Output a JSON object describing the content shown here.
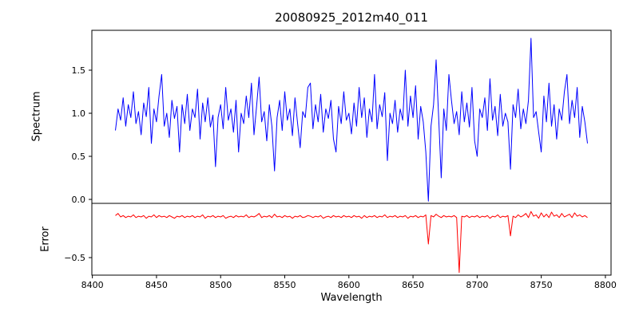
{
  "figure": {
    "background": "#ffffff",
    "frame_color": "#000000"
  },
  "chart_data": {
    "type": "line",
    "title": "20080925_2012m40_011",
    "xlabel": "Wavelength",
    "xlim": [
      8399.6,
      8804.4
    ],
    "x_ticks": [
      8400,
      8450,
      8500,
      8550,
      8600,
      8650,
      8700,
      8750,
      8800
    ],
    "grid": false,
    "legend": "none",
    "subplots": [
      {
        "name": "spectrum",
        "ylabel": "Spectrum",
        "ylim": [
          -0.046,
          1.963
        ],
        "yticks": [
          0.0,
          0.5,
          1.0,
          1.5
        ],
        "color": "#0000ff",
        "x_start": 8418,
        "x_step": 2,
        "y": [
          0.8,
          1.05,
          0.92,
          1.18,
          0.85,
          1.1,
          0.95,
          1.25,
          0.88,
          1.02,
          0.75,
          1.12,
          0.96,
          1.3,
          0.65,
          1.05,
          0.9,
          1.2,
          1.45,
          0.85,
          1.0,
          0.72,
          1.15,
          0.94,
          1.08,
          0.55,
          1.1,
          0.88,
          1.22,
          0.8,
          1.05,
          0.95,
          1.28,
          0.7,
          1.12,
          0.9,
          1.18,
          0.84,
          0.98,
          0.38,
          0.95,
          1.1,
          0.82,
          1.3,
          0.92,
          1.05,
          0.78,
          1.15,
          0.55,
          1.0,
          0.88,
          1.2,
          0.95,
          1.35,
          0.75,
          1.08,
          1.42,
          0.9,
          1.02,
          0.68,
          1.1,
          0.85,
          0.33,
          0.95,
          1.15,
          0.8,
          1.25,
          0.92,
          1.05,
          0.74,
          1.18,
          0.88,
          0.6,
          1.02,
          0.95,
          1.3,
          1.35,
          0.82,
          1.1,
          0.9,
          1.22,
          0.78,
          1.05,
          0.94,
          1.15,
          0.7,
          0.55,
          1.08,
          0.88,
          1.25,
          0.92,
          1.0,
          0.76,
          1.12,
          0.85,
          1.3,
          0.95,
          1.18,
          0.72,
          1.05,
          0.9,
          1.45,
          0.82,
          1.1,
          0.96,
          1.24,
          0.45,
          1.0,
          0.88,
          1.15,
          0.78,
          1.05,
          0.92,
          1.5,
          0.85,
          1.2,
          0.95,
          1.32,
          0.7,
          1.08,
          0.9,
          0.55,
          -0.02,
          0.85,
          1.1,
          1.62,
          0.95,
          0.25,
          1.05,
          0.8,
          1.45,
          1.15,
          0.88,
          1.02,
          0.75,
          1.25,
          0.9,
          1.12,
          0.84,
          1.3,
          0.68,
          0.5,
          1.05,
          0.95,
          1.18,
          0.8,
          1.4,
          0.92,
          1.08,
          0.74,
          1.22,
          0.85,
          1.0,
          0.9,
          0.35,
          1.1,
          0.95,
          1.28,
          0.82,
          1.05,
          0.88,
          1.15,
          1.87,
          0.95,
          1.02,
          0.78,
          0.55,
          1.2,
          0.9,
          1.35,
          0.85,
          1.1,
          0.7,
          1.05,
          0.92,
          1.25,
          1.45,
          0.88,
          1.15,
          0.95,
          1.3,
          0.72,
          1.08,
          0.9,
          0.65
        ]
      },
      {
        "name": "error",
        "ylabel": "Error",
        "ylim": [
          -0.759,
          0.3
        ],
        "yticks": [
          -0.5
        ],
        "color": "#ff0000",
        "x_start": 8418,
        "x_step": 2,
        "y": [
          0.12,
          0.15,
          0.1,
          0.12,
          0.09,
          0.11,
          0.1,
          0.13,
          0.09,
          0.11,
          0.1,
          0.12,
          0.08,
          0.11,
          0.1,
          0.13,
          0.09,
          0.12,
          0.1,
          0.11,
          0.09,
          0.12,
          0.1,
          0.08,
          0.11,
          0.1,
          0.12,
          0.09,
          0.11,
          0.1,
          0.12,
          0.09,
          0.11,
          0.1,
          0.13,
          0.08,
          0.11,
          0.1,
          0.12,
          0.09,
          0.11,
          0.1,
          0.12,
          0.08,
          0.1,
          0.11,
          0.09,
          0.12,
          0.1,
          0.11,
          0.1,
          0.13,
          0.09,
          0.11,
          0.1,
          0.12,
          0.15,
          0.09,
          0.11,
          0.1,
          0.12,
          0.09,
          0.14,
          0.1,
          0.11,
          0.09,
          0.12,
          0.1,
          0.11,
          0.08,
          0.11,
          0.1,
          0.12,
          0.09,
          0.1,
          0.12,
          0.11,
          0.09,
          0.11,
          0.1,
          0.12,
          0.08,
          0.1,
          0.11,
          0.09,
          0.12,
          0.1,
          0.11,
          0.09,
          0.12,
          0.1,
          0.11,
          0.09,
          0.12,
          0.1,
          0.11,
          0.08,
          0.12,
          0.09,
          0.11,
          0.1,
          0.12,
          0.09,
          0.11,
          0.1,
          0.13,
          0.09,
          0.11,
          0.1,
          0.12,
          0.09,
          0.11,
          0.1,
          0.12,
          0.08,
          0.11,
          0.1,
          0.12,
          0.09,
          0.11,
          0.1,
          0.13,
          -0.3,
          0.12,
          0.1,
          0.14,
          0.11,
          0.09,
          0.12,
          0.1,
          0.11,
          0.1,
          0.12,
          0.09,
          -0.72,
          0.11,
          0.1,
          0.12,
          0.09,
          0.11,
          0.1,
          0.12,
          0.09,
          0.11,
          0.1,
          0.12,
          0.08,
          0.11,
          0.1,
          0.13,
          0.09,
          0.11,
          0.1,
          0.12,
          -0.18,
          0.11,
          0.09,
          0.13,
          0.1,
          0.12,
          0.15,
          0.09,
          0.18,
          0.11,
          0.13,
          0.08,
          0.16,
          0.1,
          0.14,
          0.09,
          0.17,
          0.11,
          0.13,
          0.09,
          0.15,
          0.1,
          0.12,
          0.14,
          0.09,
          0.16,
          0.11,
          0.13,
          0.1,
          0.12,
          0.09
        ]
      }
    ]
  }
}
